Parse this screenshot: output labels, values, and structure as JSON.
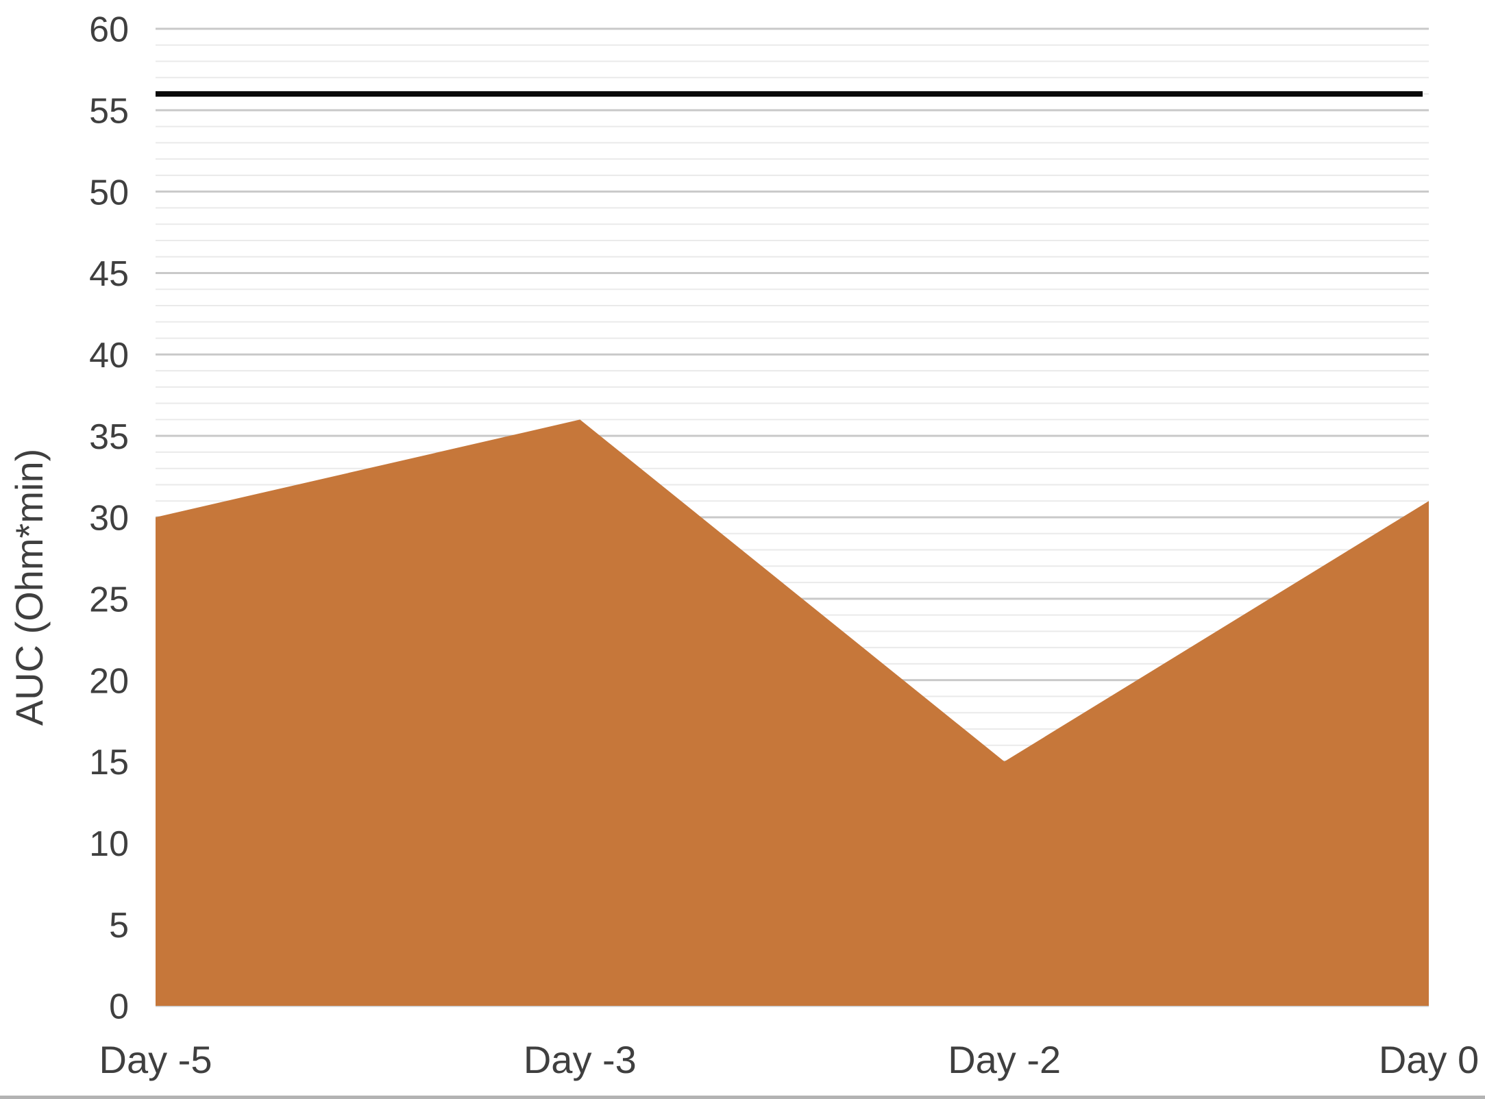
{
  "chart_data": {
    "type": "area",
    "categories": [
      "Day -5",
      "Day -3",
      "Day -2",
      "Day 0"
    ],
    "series": [
      {
        "name": "AUC",
        "type": "area",
        "color": "#c6773a",
        "values": [
          30,
          36,
          15,
          31
        ]
      },
      {
        "name": "reference-line",
        "type": "line",
        "color": "#0a0a0a",
        "values": [
          56,
          56,
          56,
          56
        ]
      }
    ],
    "title": "",
    "xlabel": "",
    "ylabel": "AUC (Ohm*min)",
    "ylim": [
      0,
      60
    ],
    "y_tick_step": 5,
    "minor_gridline_step": 1,
    "y_tick_labels": [
      "0",
      "5",
      "10",
      "15",
      "20",
      "25",
      "30",
      "35",
      "40",
      "45",
      "50",
      "55",
      "60"
    ],
    "grid": "horizontal, minor every 1 unit, major every 5 units",
    "legend_position": "none",
    "colors": {
      "area_fill": "#c6773a",
      "reference_line": "#0a0a0a",
      "major_gridline": "#c9c9c9",
      "minor_gridline": "#eaeaea",
      "axis_text": "#3f3f3f",
      "bottom_border": "#b3b3b3"
    }
  }
}
